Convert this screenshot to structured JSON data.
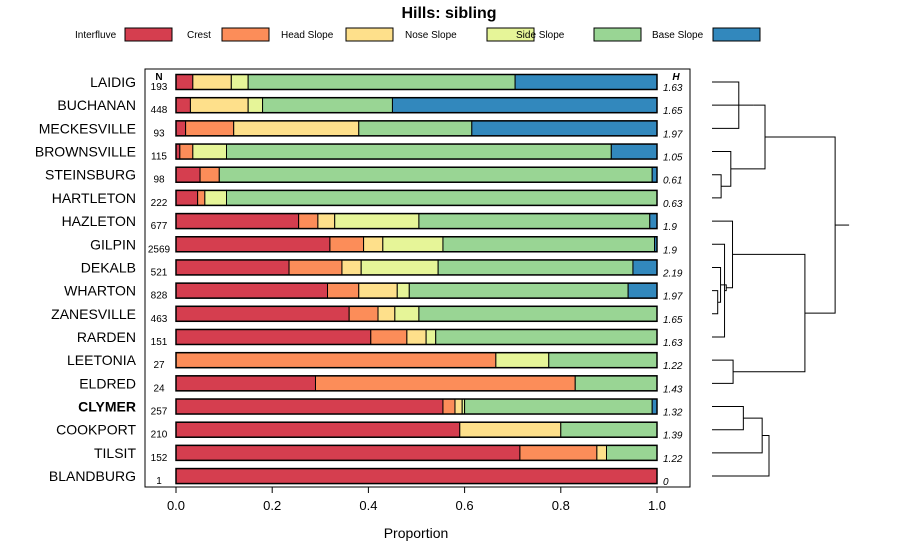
{
  "chart_data": {
    "type": "bar",
    "stacked": true,
    "orientation": "horizontal",
    "title": "Hills: sibling",
    "xlabel": "Proportion",
    "ylabel": "",
    "xlim": [
      0,
      1
    ],
    "xticks": [
      "0.0",
      "0.2",
      "0.4",
      "0.6",
      "0.8",
      "1.0"
    ],
    "n_header": "N",
    "h_header": "H",
    "series": [
      {
        "name": "Interfluve",
        "color": "#d53e4f"
      },
      {
        "name": "Crest",
        "color": "#fc8d59"
      },
      {
        "name": "Head Slope",
        "color": "#fee08b"
      },
      {
        "name": "Nose Slope",
        "color": "#e6f598"
      },
      {
        "name": "Side Slope",
        "color": "#99d594"
      },
      {
        "name": "Base Slope",
        "color": "#3288bd"
      }
    ],
    "categories": [
      {
        "name": "LAIDIG",
        "n": "193",
        "h": "1.63",
        "values": [
          0.035,
          0.0,
          0.08,
          0.035,
          0.555,
          0.295
        ]
      },
      {
        "name": "BUCHANAN",
        "n": "448",
        "h": "1.65",
        "values": [
          0.03,
          0.0,
          0.12,
          0.03,
          0.27,
          0.55
        ]
      },
      {
        "name": "MECKESVILLE",
        "n": "93",
        "h": "1.97",
        "values": [
          0.02,
          0.1,
          0.26,
          0.0,
          0.235,
          0.385
        ]
      },
      {
        "name": "BROWNSVILLE",
        "n": "115",
        "h": "1.05",
        "values": [
          0.008,
          0.027,
          0.0,
          0.07,
          0.8,
          0.095
        ]
      },
      {
        "name": "STEINSBURG",
        "n": "98",
        "h": "0.61",
        "values": [
          0.05,
          0.04,
          0.0,
          0.0,
          0.9,
          0.01
        ]
      },
      {
        "name": "HARTLETON",
        "n": "222",
        "h": "0.63",
        "values": [
          0.045,
          0.015,
          0.0,
          0.045,
          0.895,
          0.0
        ]
      },
      {
        "name": "HAZLETON",
        "n": "677",
        "h": "1.9",
        "values": [
          0.255,
          0.04,
          0.035,
          0.175,
          0.48,
          0.015
        ]
      },
      {
        "name": "GILPIN",
        "n": "2569",
        "h": "1.9",
        "values": [
          0.32,
          0.07,
          0.04,
          0.125,
          0.44,
          0.005
        ]
      },
      {
        "name": "DEKALB",
        "n": "521",
        "h": "2.19",
        "values": [
          0.235,
          0.11,
          0.04,
          0.16,
          0.405,
          0.05
        ]
      },
      {
        "name": "WHARTON",
        "n": "828",
        "h": "1.97",
        "values": [
          0.315,
          0.065,
          0.08,
          0.025,
          0.455,
          0.06
        ]
      },
      {
        "name": "ZANESVILLE",
        "n": "463",
        "h": "1.65",
        "values": [
          0.36,
          0.06,
          0.035,
          0.05,
          0.495,
          0.0
        ]
      },
      {
        "name": "RARDEN",
        "n": "151",
        "h": "1.63",
        "values": [
          0.405,
          0.075,
          0.04,
          0.02,
          0.46,
          0.0
        ]
      },
      {
        "name": "LEETONIA",
        "n": "27",
        "h": "1.22",
        "values": [
          0.0,
          0.665,
          0.0,
          0.11,
          0.225,
          0.0
        ]
      },
      {
        "name": "ELDRED",
        "n": "24",
        "h": "1.43",
        "values": [
          0.29,
          0.54,
          0.0,
          0.0,
          0.17,
          0.0
        ]
      },
      {
        "name": "CLYMER",
        "n": "257",
        "h": "1.32",
        "values": [
          0.555,
          0.025,
          0.015,
          0.005,
          0.39,
          0.01
        ],
        "bold": true
      },
      {
        "name": "COOKPORT",
        "n": "210",
        "h": "1.39",
        "values": [
          0.59,
          0.0,
          0.21,
          0.0,
          0.2,
          0.0
        ]
      },
      {
        "name": "TILSIT",
        "n": "152",
        "h": "1.22",
        "values": [
          0.715,
          0.16,
          0.02,
          0.0,
          0.105,
          0.0
        ]
      },
      {
        "name": "BLANDBURG",
        "n": "1",
        "h": "0",
        "values": [
          1.0,
          0.0,
          0.0,
          0.0,
          0.0,
          0.0
        ]
      }
    ],
    "dendrogram": {
      "description": "hierarchical clustering of rows; leaf order matches categories (top to bottom)",
      "merges": [
        [
          0,
          2,
          0.47
        ],
        [
          -1,
          1,
          0.73
        ],
        [
          4,
          5,
          0.16
        ],
        [
          3,
          -3,
          0.33
        ],
        [
          -2,
          -4,
          0.93
        ],
        [
          9,
          10,
          0.1
        ],
        [
          8,
          -6,
          0.15
        ],
        [
          7,
          11,
          0.22
        ],
        [
          -7,
          -8,
          0.25
        ],
        [
          6,
          -9,
          0.36
        ],
        [
          14,
          15,
          0.55
        ],
        [
          -11,
          16,
          0.88
        ],
        [
          -12,
          17,
          1.0
        ],
        [
          12,
          13,
          0.37
        ],
        [
          -10,
          -14,
          1.63
        ],
        [
          -5,
          -15,
          2.16
        ]
      ]
    }
  }
}
